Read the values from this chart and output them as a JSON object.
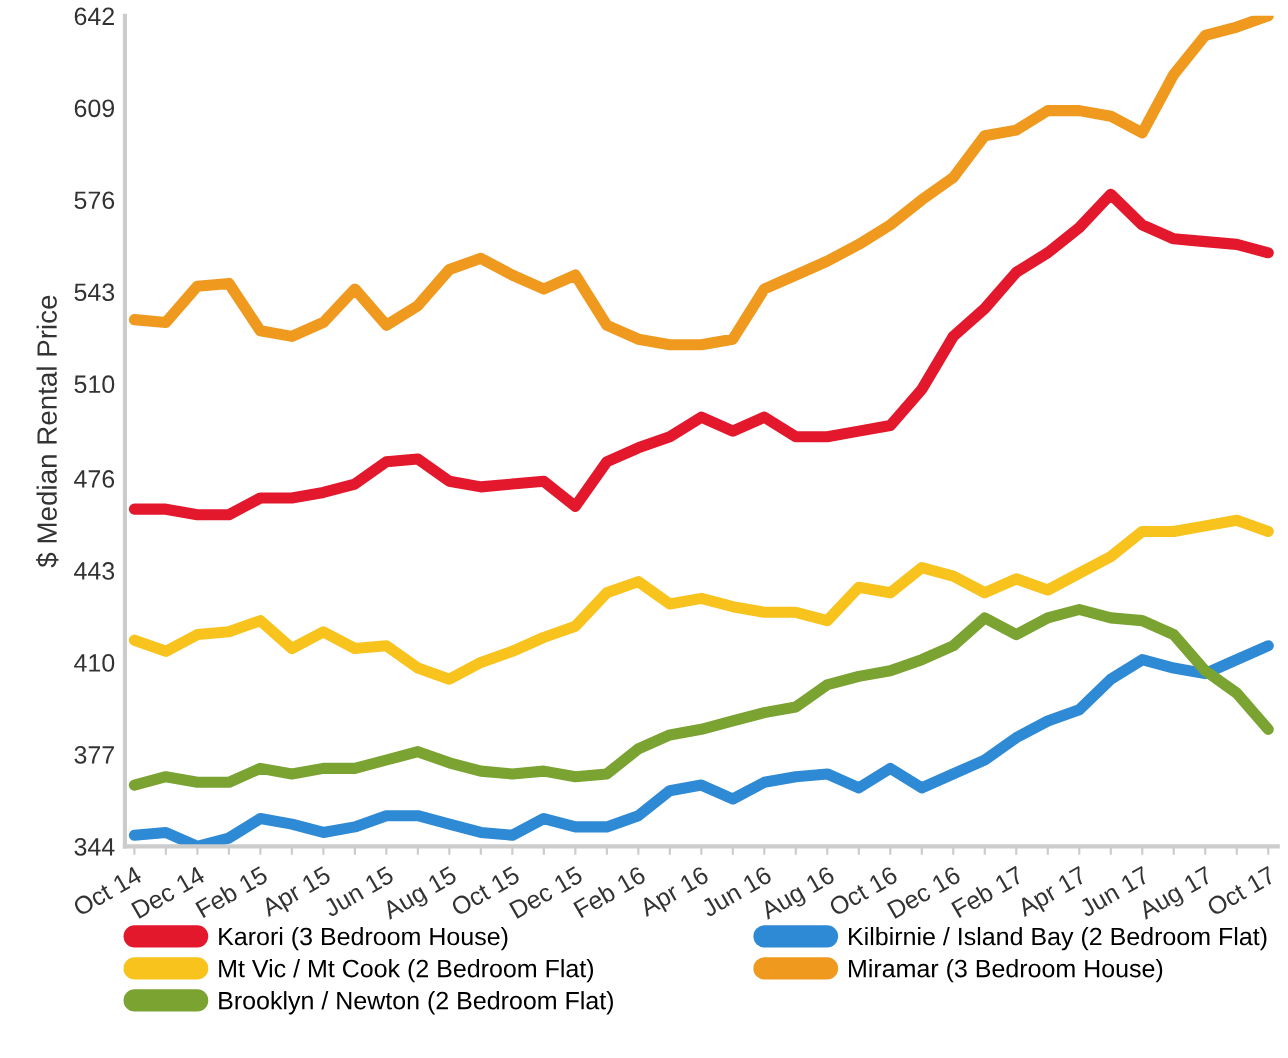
{
  "chart_data": {
    "type": "line",
    "ylabel": "$ Median Rental Price",
    "categories": [
      "Oct 14",
      null,
      "Dec 14",
      null,
      "Feb 15",
      null,
      "Apr 15",
      null,
      "Jun 15",
      null,
      "Aug 15",
      null,
      "Oct 15",
      null,
      "Dec 15",
      null,
      "Feb 16",
      null,
      "Apr 16",
      null,
      "Jun 16",
      null,
      "Aug 16",
      null,
      "Oct 16",
      null,
      "Dec 16",
      null,
      "Feb 17",
      null,
      "Apr 17",
      null,
      "Jun 17",
      null,
      "Aug 17",
      null,
      "Oct 17"
    ],
    "series": [
      {
        "name": "Karori (3 Bedroom House)",
        "color": "#e3182d",
        "values": [
          465,
          465,
          463,
          463,
          469,
          469,
          471,
          474,
          482,
          483,
          475,
          473,
          474,
          475,
          466,
          482,
          487,
          491,
          498,
          493,
          498,
          491,
          491,
          493,
          495,
          508,
          527,
          537,
          550,
          557,
          566,
          578,
          567,
          562,
          561,
          560,
          557
        ]
      },
      {
        "name": "Kilbirnie / Island Bay (2 Bedroom Flat)",
        "color": "#2e8ad4",
        "values": [
          348,
          349,
          344,
          347,
          354,
          352,
          349,
          351,
          355,
          355,
          352,
          349,
          348,
          354,
          351,
          351,
          355,
          364,
          366,
          361,
          367,
          369,
          370,
          365,
          372,
          365,
          370,
          375,
          383,
          389,
          393,
          404,
          411,
          408,
          406,
          411,
          416
        ]
      },
      {
        "name": "Mt Vic / Mt Cook (2 Bedroom Flat)",
        "color": "#f8c31c",
        "values": [
          418,
          414,
          420,
          421,
          425,
          415,
          421,
          415,
          416,
          408,
          404,
          410,
          414,
          419,
          423,
          435,
          439,
          431,
          433,
          430,
          428,
          428,
          425,
          437,
          435,
          444,
          441,
          435,
          440,
          436,
          442,
          448,
          457,
          457,
          459,
          461,
          457
        ]
      },
      {
        "name": "Miramar (3 Bedroom House)",
        "color": "#ef9a1f",
        "values": [
          533,
          532,
          545,
          546,
          529,
          527,
          532,
          544,
          531,
          538,
          551,
          555,
          549,
          544,
          549,
          531,
          526,
          524,
          524,
          526,
          544,
          549,
          554,
          560,
          567,
          576,
          584,
          599,
          601,
          608,
          608,
          606,
          600,
          621,
          635,
          638,
          642
        ]
      },
      {
        "name": "Brooklyn / Newton (2 Bedroom Flat)",
        "color": "#7aa332",
        "values": [
          366,
          369,
          367,
          367,
          372,
          370,
          372,
          372,
          375,
          378,
          374,
          371,
          370,
          371,
          369,
          370,
          379,
          384,
          386,
          389,
          392,
          394,
          402,
          405,
          407,
          411,
          416,
          426,
          420,
          426,
          429,
          426,
          425,
          420,
          407,
          399,
          386
        ]
      }
    ],
    "ylim": [
      344,
      642
    ],
    "yticks": [
      344,
      377,
      410,
      443,
      476,
      510,
      543,
      576,
      609,
      642
    ],
    "grid": false,
    "legend": "bottom",
    "marker": "none",
    "line_style": "solid"
  }
}
